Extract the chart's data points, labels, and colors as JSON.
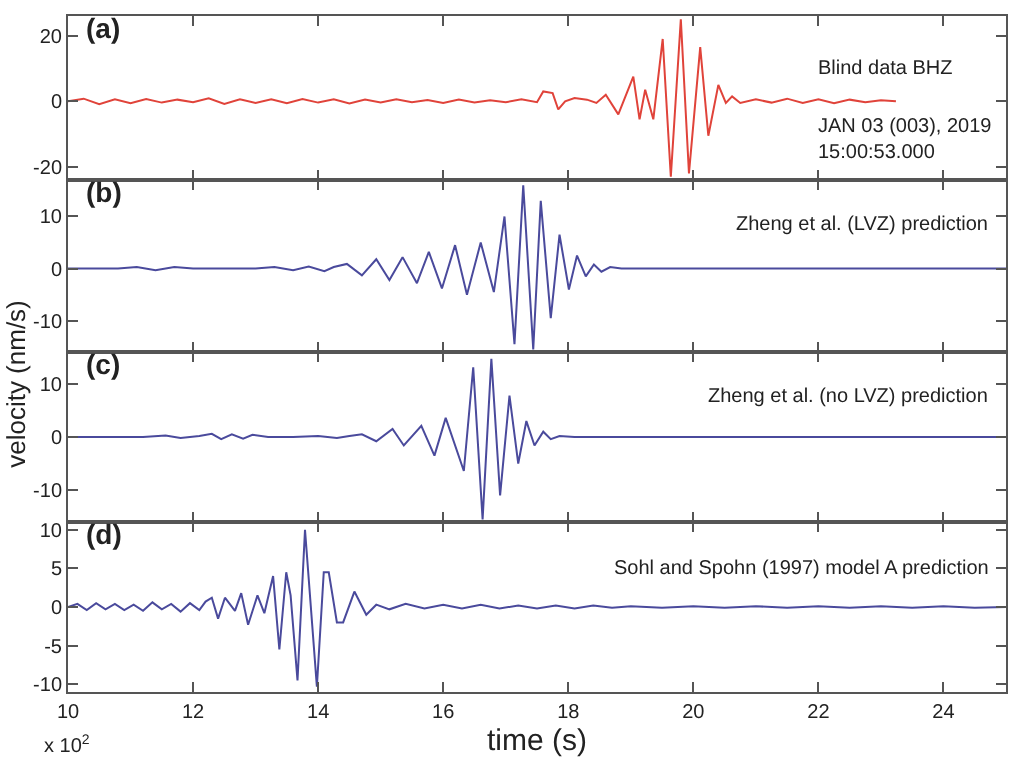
{
  "chart_data": [
    {
      "type": "line",
      "annotations": [
        "(a)",
        "Blind data BHZ",
        "JAN 03 (003), 2019\n15:00:53.000"
      ],
      "xlim": [
        10,
        25
      ],
      "xticks": [
        10,
        12,
        14,
        16,
        18,
        20,
        22,
        24
      ],
      "ylim": [
        -24,
        26
      ],
      "yticks": [
        -20,
        0,
        20
      ],
      "tick_labels": "y",
      "grid": false,
      "marker": "none",
      "line_style": "solid",
      "series": [
        {
          "color": "#e0433a",
          "x": [
            10,
            10.25,
            10.5,
            10.75,
            11,
            11.25,
            11.5,
            11.75,
            12,
            12.25,
            12.5,
            12.75,
            13,
            13.25,
            13.5,
            13.75,
            14,
            14.25,
            14.5,
            14.75,
            15,
            15.25,
            15.5,
            15.75,
            16,
            16.25,
            16.5,
            16.75,
            17,
            17.25,
            17.5,
            17.6,
            17.75,
            17.84,
            17.95,
            18.1,
            18.3,
            18.45,
            18.6,
            18.8,
            19.04,
            19.14,
            19.23,
            19.36,
            19.51,
            19.64,
            19.8,
            19.93,
            20.11,
            20.24,
            20.4,
            20.52,
            20.62,
            20.75,
            21,
            21.25,
            21.5,
            21.75,
            22,
            22.25,
            22.5,
            22.75,
            23,
            23.24
          ],
          "values": [
            0,
            0.8,
            -0.9,
            0.6,
            -0.6,
            0.7,
            -0.4,
            0.5,
            -0.3,
            0.9,
            -0.8,
            0.6,
            -0.5,
            0.6,
            -0.6,
            0.7,
            -0.4,
            0.6,
            -0.7,
            0.5,
            -0.4,
            0.6,
            -0.3,
            0.4,
            -0.5,
            0.5,
            -0.4,
            0.3,
            -0.3,
            0.6,
            -0.3,
            3,
            2.5,
            -2.5,
            0,
            1,
            0.5,
            -0.5,
            2,
            -4,
            7.5,
            -5.5,
            3.5,
            -5.5,
            19,
            -23,
            25,
            -22,
            16.5,
            -10.5,
            5,
            -0.5,
            1.5,
            -0.5,
            0.6,
            -0.4,
            0.8,
            -0.5,
            0.6,
            -0.6,
            0.5,
            -0.3,
            0.3,
            0
          ]
        }
      ]
    },
    {
      "type": "line",
      "annotations": [
        "(b)",
        "Zheng et al. (LVZ) prediction"
      ],
      "ylabel": "velocity (nm/s)",
      "xlim": [
        10,
        25
      ],
      "xticks": [
        10,
        12,
        14,
        16,
        18,
        20,
        22,
        24
      ],
      "ylim": [
        -16,
        17
      ],
      "yticks": [
        -10,
        0,
        10
      ],
      "tick_labels": "y",
      "grid": false,
      "marker": "none",
      "line_style": "solid",
      "series": [
        {
          "color": "#4a4a9c",
          "x": [
            10,
            10.8,
            11.1,
            11.4,
            11.7,
            12,
            12.5,
            13,
            13.3,
            13.6,
            13.85,
            14.1,
            14.25,
            14.46,
            14.7,
            14.93,
            15.14,
            15.35,
            15.58,
            15.77,
            15.98,
            16.19,
            16.38,
            16.6,
            16.81,
            16.98,
            17.14,
            17.28,
            17.44,
            17.56,
            17.72,
            17.86,
            18.01,
            18.14,
            18.28,
            18.41,
            18.53,
            18.67,
            18.85,
            19.2,
            25
          ],
          "values": [
            0,
            0,
            0.3,
            -0.3,
            0.3,
            0,
            0,
            0,
            0.3,
            -0.3,
            0.4,
            -0.5,
            0.3,
            0.9,
            -1.3,
            1.8,
            -2.2,
            2.2,
            -2.8,
            3.2,
            -3.8,
            4.5,
            -5,
            5,
            -4.5,
            10,
            -14.5,
            16,
            -15.5,
            13,
            -9.5,
            6.5,
            -4,
            2.5,
            -1.5,
            0.8,
            -0.6,
            0.3,
            0,
            0,
            0
          ]
        }
      ]
    },
    {
      "type": "line",
      "annotations": [
        "(c)",
        "Zheng et al. (no LVZ) prediction"
      ],
      "xlim": [
        10,
        25
      ],
      "xticks": [
        10,
        12,
        14,
        16,
        18,
        20,
        22,
        24
      ],
      "ylim": [
        -16,
        16
      ],
      "yticks": [
        -10,
        0,
        10
      ],
      "tick_labels": "y",
      "grid": false,
      "marker": "none",
      "line_style": "solid",
      "series": [
        {
          "color": "#4a4a9c",
          "x": [
            10,
            11.2,
            11.56,
            11.8,
            12.1,
            12.3,
            12.45,
            12.62,
            12.8,
            12.95,
            13.2,
            13.6,
            14,
            14.3,
            14.5,
            14.7,
            14.93,
            15.19,
            15.37,
            15.65,
            15.86,
            16.04,
            16.33,
            16.48,
            16.63,
            16.77,
            16.91,
            17.06,
            17.2,
            17.33,
            17.46,
            17.6,
            17.72,
            17.86,
            18.1,
            25
          ],
          "values": [
            0,
            0,
            0.3,
            -0.2,
            0.2,
            0.6,
            -0.4,
            0.5,
            -0.3,
            0.4,
            0,
            0,
            0.2,
            -0.2,
            0.2,
            0.5,
            -0.8,
            1.5,
            -1.6,
            2.1,
            -3.5,
            3.6,
            -6.4,
            13.1,
            -15.5,
            14.7,
            -11,
            7.8,
            -5,
            3,
            -1.6,
            1,
            -0.4,
            0.2,
            0,
            0
          ]
        }
      ]
    },
    {
      "type": "line",
      "annotations": [
        "(d)",
        "Sohl and Spohn (1997) model A prediction",
        "x 10$^{2}$"
      ],
      "xlabel": "time (s)",
      "xlim": [
        10,
        25
      ],
      "xticks": [
        10,
        12,
        14,
        16,
        18,
        20,
        22,
        24
      ],
      "ylim": [
        -11,
        11
      ],
      "yticks": [
        -10,
        -5,
        0,
        5,
        10
      ],
      "grid": false,
      "marker": "none",
      "line_style": "solid",
      "series": [
        {
          "color": "#4a4a9c",
          "x": [
            10,
            10.15,
            10.3,
            10.45,
            10.6,
            10.75,
            10.9,
            11.05,
            11.2,
            11.35,
            11.5,
            11.65,
            11.8,
            11.95,
            12.1,
            12.2,
            12.3,
            12.4,
            12.51,
            12.67,
            12.77,
            12.88,
            13.03,
            13.14,
            13.28,
            13.38,
            13.49,
            13.56,
            13.67,
            13.79,
            13.98,
            14.09,
            14.17,
            14.3,
            14.4,
            14.58,
            14.77,
            14.93,
            15.14,
            15.4,
            15.7,
            16,
            16.3,
            16.6,
            16.9,
            17.2,
            17.5,
            17.8,
            18.1,
            18.4,
            18.7,
            19,
            19.5,
            20,
            20.5,
            21,
            21.5,
            22,
            22.5,
            23,
            23.5,
            24,
            24.5,
            25
          ],
          "values": [
            0,
            0.4,
            -0.4,
            0.5,
            -0.3,
            0.4,
            -0.4,
            0.3,
            -0.5,
            0.6,
            -0.3,
            0.4,
            -0.6,
            0.5,
            -0.4,
            0.7,
            1.2,
            -1.5,
            1.2,
            -0.5,
            1.8,
            -2.3,
            1.5,
            -0.8,
            4,
            -5.5,
            4.5,
            1.5,
            -9.5,
            10,
            -10.3,
            4.5,
            4.5,
            -2,
            -2,
            2,
            -1,
            0.3,
            -0.3,
            0.4,
            -0.2,
            0.3,
            -0.2,
            0.3,
            -0.2,
            0.2,
            -0.2,
            0.2,
            -0.2,
            0.2,
            -0.1,
            0.1,
            -0.1,
            0.1,
            -0.1,
            0.1,
            -0.1,
            0.1,
            -0.1,
            0.1,
            -0.1,
            0.1,
            -0.1,
            0
          ]
        }
      ]
    }
  ]
}
